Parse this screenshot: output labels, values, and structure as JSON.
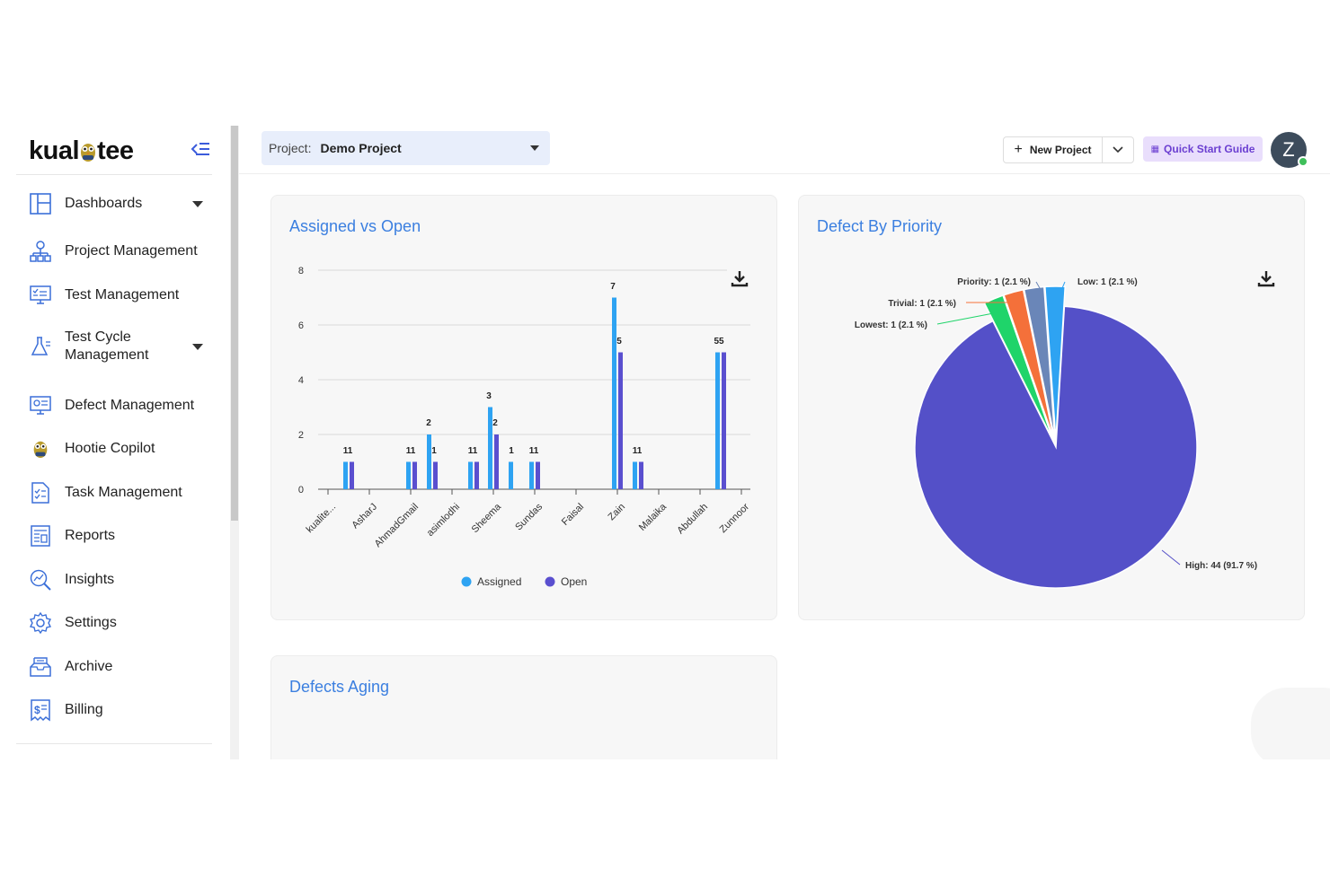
{
  "brand": {
    "name_left": "kual",
    "name_right": "tee"
  },
  "sidebar": {
    "items": [
      {
        "label": "Dashboards",
        "icon": "dashboard-icon",
        "expandable": true
      },
      {
        "label": "Project Management",
        "icon": "org-chart-icon"
      },
      {
        "label": "Test Management",
        "icon": "test-monitor-icon"
      },
      {
        "label": "Test Cycle Management",
        "icon": "flask-icon",
        "expandable": true
      },
      {
        "label": "Defect Management",
        "icon": "bug-monitor-icon"
      },
      {
        "label": "Hootie Copilot",
        "icon": "owl-icon"
      },
      {
        "label": "Task Management",
        "icon": "task-list-icon"
      },
      {
        "label": "Reports",
        "icon": "report-icon"
      },
      {
        "label": "Insights",
        "icon": "insights-icon"
      },
      {
        "label": "Settings",
        "icon": "gear-icon"
      },
      {
        "label": "Archive",
        "icon": "archive-icon"
      },
      {
        "label": "Billing",
        "icon": "billing-icon"
      }
    ]
  },
  "topbar": {
    "project_label": "Project:",
    "project_value": "Demo Project",
    "new_project": "New Project",
    "quick_start": "Quick Start Guide",
    "avatar_initial": "Z"
  },
  "cards": {
    "assigned_title": "Assigned vs Open",
    "priority_title": "Defect By Priority",
    "aging_title": "Defects Aging"
  },
  "colors": {
    "assigned": "#2ea3f2",
    "open": "#5a4fcf",
    "accent": "#3b7fe0"
  },
  "chart_data": [
    {
      "type": "bar",
      "title": "Assigned vs Open",
      "categories": [
        "kualite...",
        "AsharJ",
        "AhmadGmail",
        "asimlodhi",
        "Sheema",
        "Sundas",
        "Faisal",
        "Zain",
        "Malaika",
        "Abdullah",
        "Zunnoor"
      ],
      "series": [
        {
          "name": "Assigned",
          "color": "#2ea3f2",
          "values": [
            1,
            1,
            2,
            1,
            3,
            1,
            1,
            7,
            1,
            5,
            null
          ]
        },
        {
          "name": "Open",
          "color": "#5a4fcf",
          "values": [
            1,
            1,
            1,
            1,
            2,
            null,
            1,
            5,
            1,
            5,
            null
          ]
        }
      ],
      "data_labels": [
        {
          "text": "11"
        },
        {
          "text": "11"
        },
        {
          "text": "2"
        },
        {
          "text": "1"
        },
        {
          "text": "11"
        },
        {
          "text": "3"
        },
        {
          "text": "2"
        },
        {
          "text": "1"
        },
        {
          "text": "11"
        },
        {
          "text": "7"
        },
        {
          "text": "5"
        },
        {
          "text": "11"
        },
        {
          "text": "55"
        }
      ],
      "yticks": [
        "0",
        "2",
        "4",
        "6",
        "8"
      ],
      "ylim": [
        0,
        8
      ],
      "legend": "bottom-center",
      "grid": true
    },
    {
      "type": "pie",
      "title": "Defect By Priority",
      "slices": [
        {
          "name": "High",
          "value": 44,
          "label": "High: 44 (91.7 %)",
          "color": "#5450c8"
        },
        {
          "name": "Lowest",
          "value": 1,
          "label": "Lowest: 1 (2.1 %)",
          "color": "#1fd46a"
        },
        {
          "name": "Trivial",
          "value": 1,
          "label": "Trivial: 1 (2.1 %)",
          "color": "#f4703a"
        },
        {
          "name": "Priority",
          "value": 1,
          "label": "Priority: 1 (2.1 %)",
          "color": "#6a86b8"
        },
        {
          "name": "Low",
          "value": 1,
          "label": "Low: 1 (2.1 %)",
          "color": "#2ea3f2"
        }
      ]
    }
  ]
}
